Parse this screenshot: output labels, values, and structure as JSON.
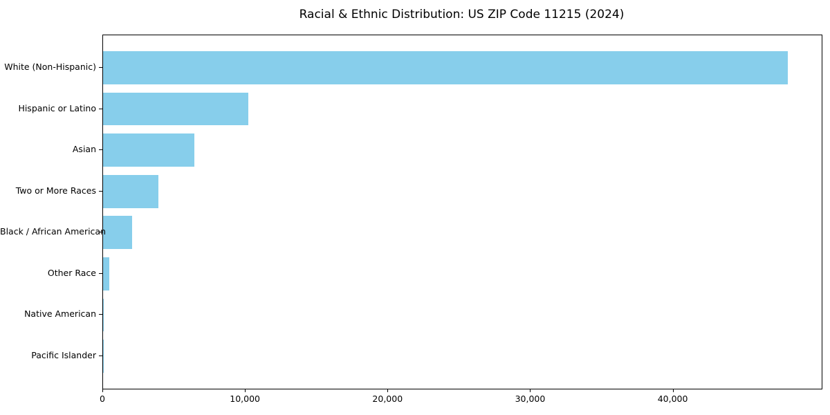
{
  "title": "Racial & Ethnic Distribution: US ZIP Code 11215 (2024)",
  "colors": {
    "bar": "#87CEEB",
    "spine": "#000000",
    "text": "#000000",
    "background": "#FFFFFF"
  },
  "chart_data": {
    "type": "bar",
    "orientation": "horizontal",
    "title": "Racial & Ethnic Distribution: US ZIP Code 11215 (2024)",
    "categories": [
      "White (Non-Hispanic)",
      "Hispanic or Latino",
      "Asian",
      "Two or More Races",
      "Black / African American",
      "Other Race",
      "Native American",
      "Pacific Islander"
    ],
    "values": [
      48000,
      10200,
      6400,
      3900,
      2050,
      420,
      60,
      20
    ],
    "xlabel": "",
    "ylabel": "",
    "xlim": [
      0,
      50400
    ],
    "x_ticks": [
      0,
      10000,
      20000,
      30000,
      40000
    ],
    "x_tick_labels": [
      "0",
      "10,000",
      "20,000",
      "30,000",
      "40,000"
    ],
    "grid": false,
    "legend": null,
    "bar_color": "#87CEEB"
  }
}
